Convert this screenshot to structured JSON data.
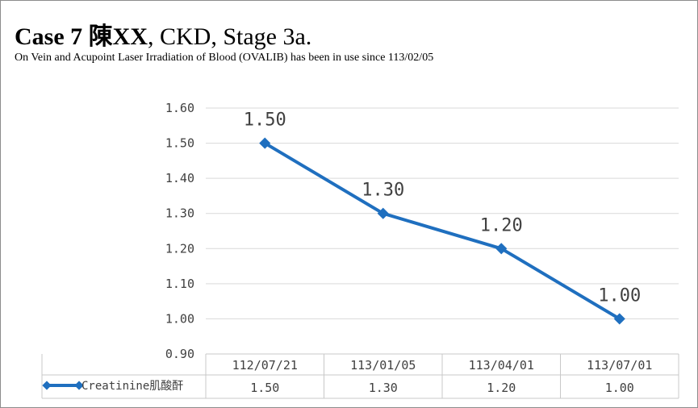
{
  "header": {
    "title_bold": "Case 7 陳XX",
    "title_rest": ", CKD, Stage 3a.",
    "subtitle": "On Vein and Acupoint Laser Irradiation of Blood (OVALIB) has been in use since 113/02/05"
  },
  "chart_data": {
    "type": "line",
    "title": "",
    "xlabel": "",
    "ylabel": "",
    "categories": [
      "112/07/21",
      "113/01/05",
      "113/04/01",
      "113/07/01"
    ],
    "series": [
      {
        "name": "Creatinine肌酸酐",
        "values": [
          1.5,
          1.3,
          1.2,
          1.0
        ],
        "labels": [
          "1.50",
          "1.30",
          "1.20",
          "1.00"
        ],
        "color": "#1f6fbf"
      }
    ],
    "ylim": [
      0.9,
      1.6
    ],
    "yticks": [
      "0.90",
      "1.00",
      "1.10",
      "1.20",
      "1.30",
      "1.40",
      "1.50",
      "1.60"
    ],
    "grid": true,
    "data_table": true
  }
}
